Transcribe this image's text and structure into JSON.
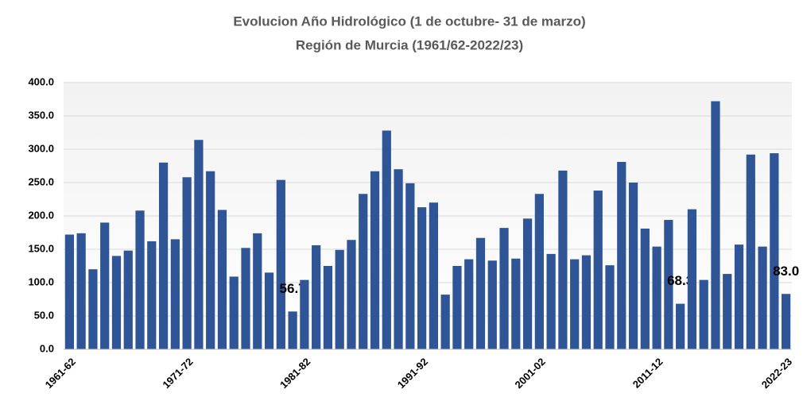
{
  "chart_data": {
    "type": "bar",
    "title": "Evolucion Año Hidrológico (1 de octubre- 31 de marzo)",
    "subtitle": "Región de Murcia (1961/62-2022/23)",
    "categories": [
      "1961-62",
      null,
      null,
      null,
      null,
      null,
      null,
      null,
      null,
      null,
      "1971-72",
      null,
      null,
      null,
      null,
      null,
      null,
      null,
      null,
      null,
      "1981-82",
      null,
      null,
      null,
      null,
      null,
      null,
      null,
      null,
      null,
      "1991-92",
      null,
      null,
      null,
      null,
      null,
      null,
      null,
      null,
      null,
      "2001-02",
      null,
      null,
      null,
      null,
      null,
      null,
      null,
      null,
      null,
      "2011-12",
      null,
      null,
      null,
      null,
      null,
      null,
      null,
      null,
      null,
      null,
      "2022-23"
    ],
    "values": [
      172,
      174,
      120,
      190,
      140,
      148,
      208,
      162,
      280,
      165,
      258,
      314,
      267,
      209,
      109,
      152,
      174,
      115,
      254,
      56.7,
      104,
      156,
      125,
      149,
      164,
      233,
      267,
      328,
      270,
      249,
      213,
      220,
      82,
      125,
      135,
      167,
      133,
      182,
      136,
      196,
      233,
      143,
      268,
      135,
      141,
      238,
      126,
      281,
      250,
      181,
      154,
      194,
      68.3,
      210,
      104,
      372,
      113,
      157,
      292,
      154,
      294,
      83.0
    ],
    "value_labels": [
      null,
      null,
      null,
      null,
      null,
      null,
      null,
      null,
      null,
      null,
      null,
      null,
      null,
      null,
      null,
      null,
      null,
      null,
      null,
      "56.7",
      null,
      null,
      null,
      null,
      null,
      null,
      null,
      null,
      null,
      null,
      null,
      null,
      null,
      null,
      null,
      null,
      null,
      null,
      null,
      null,
      null,
      null,
      null,
      null,
      null,
      null,
      null,
      null,
      null,
      null,
      null,
      null,
      "68.3",
      null,
      null,
      null,
      null,
      null,
      null,
      null,
      null,
      "83.0"
    ],
    "color": "#2f5597",
    "ylim": [
      0,
      400
    ],
    "yticks": [
      {
        "value": 0,
        "label": "0.0"
      },
      {
        "value": 50,
        "label": "50.0"
      },
      {
        "value": 100,
        "label": "100.0"
      },
      {
        "value": 150,
        "label": "150.0"
      },
      {
        "value": 200,
        "label": "200.0"
      },
      {
        "value": 250,
        "label": "250.0"
      },
      {
        "value": 300,
        "label": "300.0"
      },
      {
        "value": 350,
        "label": "350.0"
      },
      {
        "value": 400,
        "label": "400.0"
      }
    ],
    "grid": true
  }
}
